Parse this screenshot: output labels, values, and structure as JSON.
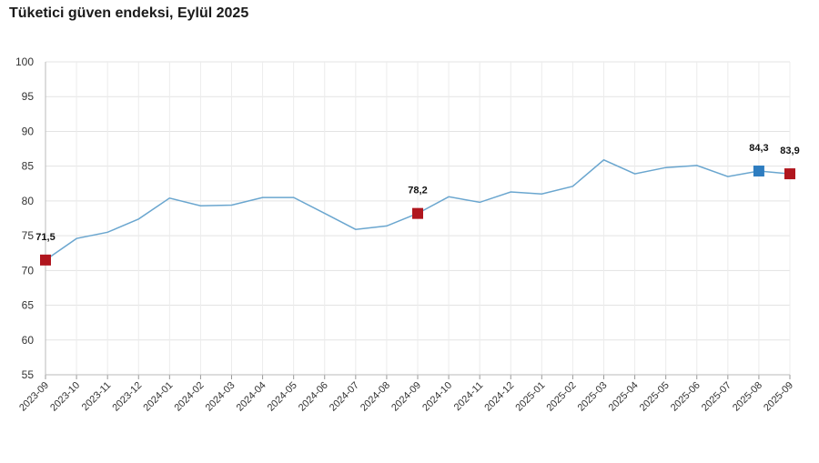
{
  "chart_data": {
    "type": "line",
    "title": "Tüketici güven endeksi, Eylül 2025",
    "xlabel": "",
    "ylabel": "",
    "ylim": [
      55,
      100
    ],
    "yticks": [
      "55",
      "60",
      "65",
      "70",
      "75",
      "80",
      "85",
      "90",
      "95",
      "100"
    ],
    "grid": true,
    "line_color": "#6aa6cf",
    "categories": [
      "2023-09",
      "2023-10",
      "2023-11",
      "2023-12",
      "2024-01",
      "2024-02",
      "2024-03",
      "2024-04",
      "2024-05",
      "2024-06",
      "2024-07",
      "2024-08",
      "2024-09",
      "2024-10",
      "2024-11",
      "2024-12",
      "2025-01",
      "2025-02",
      "2025-03",
      "2025-04",
      "2025-05",
      "2025-06",
      "2025-07",
      "2025-08",
      "2025-09"
    ],
    "values": [
      71.5,
      74.6,
      75.5,
      77.4,
      80.4,
      79.3,
      79.4,
      80.5,
      80.5,
      78.2,
      75.9,
      76.4,
      78.2,
      80.6,
      79.8,
      81.3,
      81.0,
      82.1,
      85.9,
      83.9,
      84.8,
      85.1,
      83.5,
      84.3,
      83.9
    ],
    "highlights": [
      {
        "index": 0,
        "label": "71,5",
        "color": "#b0161e"
      },
      {
        "index": 12,
        "label": "78,2",
        "color": "#b0161e"
      },
      {
        "index": 23,
        "label": "84,3",
        "color": "#2e7dc0"
      },
      {
        "index": 24,
        "label": "83,9",
        "color": "#b0161e"
      }
    ]
  }
}
